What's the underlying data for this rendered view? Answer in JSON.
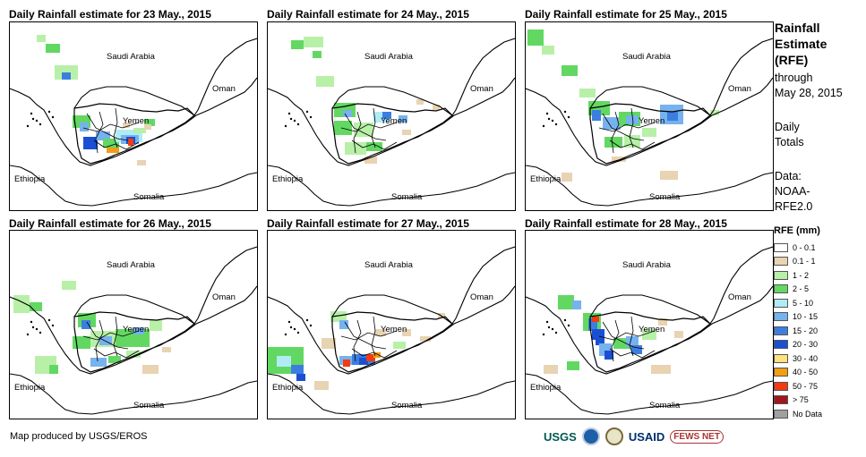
{
  "panels": [
    {
      "title": "Daily Rainfall estimate for 23 May., 2015"
    },
    {
      "title": "Daily Rainfall estimate for 24 May., 2015"
    },
    {
      "title": "Daily Rainfall estimate for 25 May., 2015"
    },
    {
      "title": "Daily Rainfall estimate for 26 May., 2015"
    },
    {
      "title": "Daily Rainfall estimate for 27 May., 2015"
    },
    {
      "title": "Daily Rainfall estimate for 28 May., 2015"
    }
  ],
  "map_labels": {
    "saudi": "Saudi Arabia",
    "oman": "Oman",
    "yemen": "Yemen",
    "ethiopia": "Ethiopia",
    "somalia": "Somalia"
  },
  "sidebar": {
    "title_line1": "Rainfall",
    "title_line2": "Estimate",
    "title_line3": "(RFE)",
    "through": "through",
    "date": "May 28, 2015",
    "daily": "Daily",
    "totals": "Totals",
    "data_label": "Data:",
    "source1": "NOAA-",
    "source2": "RFE2.0"
  },
  "legend": {
    "title": "RFE (mm)",
    "items": [
      {
        "label": "0 - 0.1",
        "color": "#ffffff"
      },
      {
        "label": "0.1 - 1",
        "color": "#e8d3b2"
      },
      {
        "label": "1 - 2",
        "color": "#b8f0a8"
      },
      {
        "label": "2 - 5",
        "color": "#62d862"
      },
      {
        "label": "5 - 10",
        "color": "#b0ecf6"
      },
      {
        "label": "10 - 15",
        "color": "#76b2ee"
      },
      {
        "label": "15 - 20",
        "color": "#3c7ee0"
      },
      {
        "label": "20 - 30",
        "color": "#1a4fd4"
      },
      {
        "label": "30 - 40",
        "color": "#fce27a"
      },
      {
        "label": "40 - 50",
        "color": "#f39d12"
      },
      {
        "label": "50 - 75",
        "color": "#f23b10"
      },
      {
        "label": "> 75",
        "color": "#a3161c"
      },
      {
        "label": "No Data",
        "color": "#a0a0a0"
      }
    ]
  },
  "credit": "Map produced by USGS/EROS",
  "logos": {
    "usgs": "USGS",
    "usaid": "USAID",
    "fews": "FEWS NET"
  }
}
